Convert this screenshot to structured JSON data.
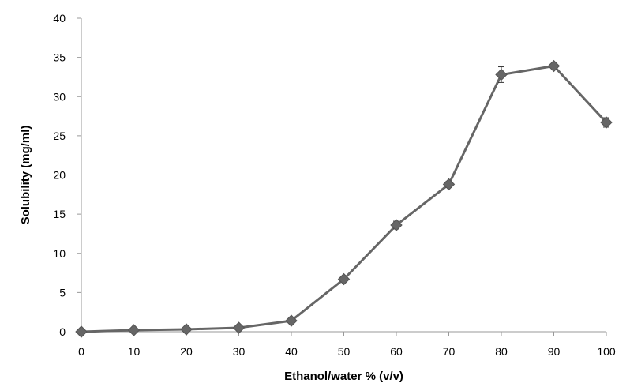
{
  "chart_data": {
    "type": "line",
    "title": "",
    "xlabel": "Ethanol/water % (v/v)",
    "ylabel": "Solubility (mg/ml)",
    "xlim": [
      0,
      100
    ],
    "ylim": [
      0,
      40
    ],
    "x_ticks": [
      0,
      10,
      20,
      30,
      40,
      50,
      60,
      70,
      80,
      90,
      100
    ],
    "y_ticks": [
      0,
      5,
      10,
      15,
      20,
      25,
      30,
      35,
      40
    ],
    "grid": false,
    "legend": "none",
    "marker": "diamond",
    "color": "#666666",
    "series": [
      {
        "x": [
          0,
          10,
          20,
          30,
          40,
          50,
          60,
          70,
          80,
          90,
          100
        ],
        "y": [
          0.0,
          0.2,
          0.3,
          0.5,
          1.4,
          6.7,
          13.6,
          18.8,
          32.8,
          33.9,
          26.7
        ],
        "error": [
          0.05,
          0.05,
          0.05,
          0.05,
          0.1,
          0.2,
          0.5,
          0.4,
          1.0,
          0.3,
          0.6
        ]
      }
    ]
  }
}
